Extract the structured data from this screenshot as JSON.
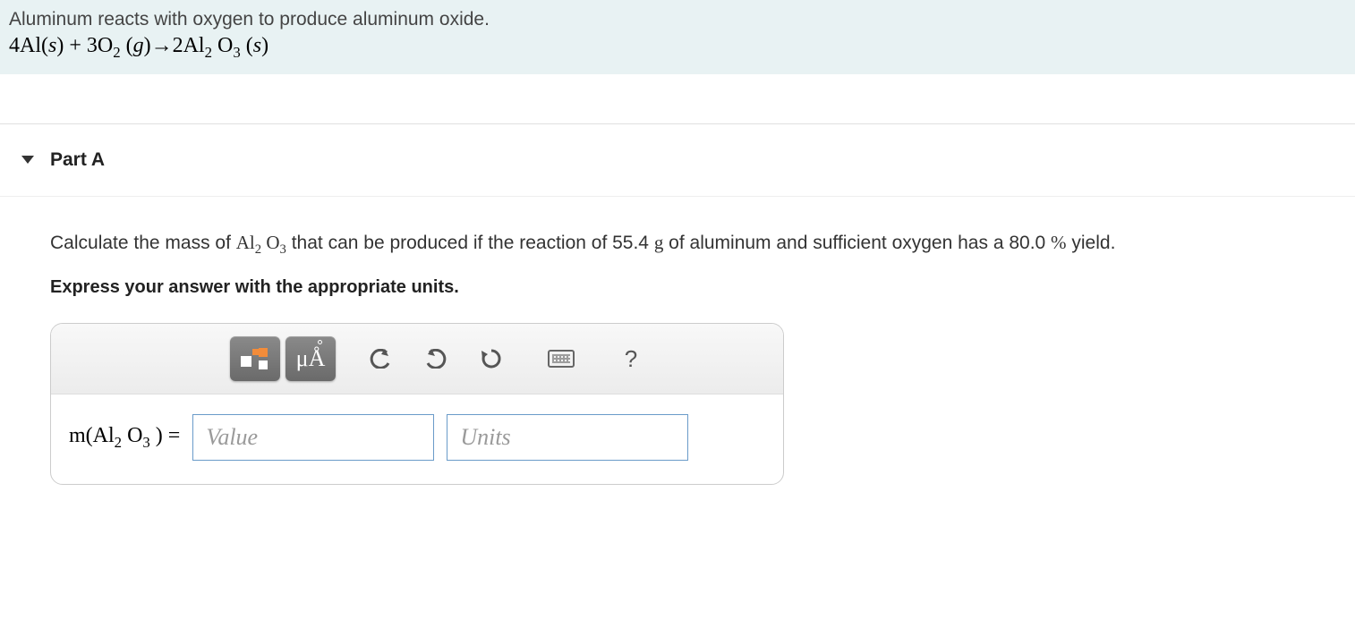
{
  "header": {
    "intro": "Aluminum reacts with oxygen to produce aluminum oxide.",
    "equation_html": "4Al(<i>s</i>) + 3O<sub>2</sub> (<i>g</i>)→2Al<sub>2</sub> O<sub>3</sub> (<i>s</i>)"
  },
  "part": {
    "label": "Part A",
    "question_prefix": "Calculate the mass of ",
    "compound_html": "Al<sub>2</sub> O<sub>3</sub>",
    "question_mid": " that can be produced if the reaction of 55.4 ",
    "grams": "g",
    "question_tail": " of aluminum and sufficient oxygen has a 80.0 ",
    "percent": "%",
    "yield": " yield.",
    "instruction": "Express your answer with the appropriate units."
  },
  "toolbar": {
    "templates_tip": "Templates",
    "special_tip": "μÅ",
    "undo_tip": "Undo",
    "redo_tip": "Redo",
    "reset_tip": "Reset",
    "keyboard_tip": "Keyboard",
    "help_tip": "?"
  },
  "answer": {
    "lhs_html": "m(Al<sub>2</sub> O<sub>3</sub> ) = ",
    "value_placeholder": "Value",
    "units_placeholder": "Units"
  },
  "colors": {
    "header_bg": "#e8f2f3",
    "accent_border": "#6a9bc9",
    "toolbar_dark": "#6a6a6a",
    "orange": "#f28c3a"
  }
}
